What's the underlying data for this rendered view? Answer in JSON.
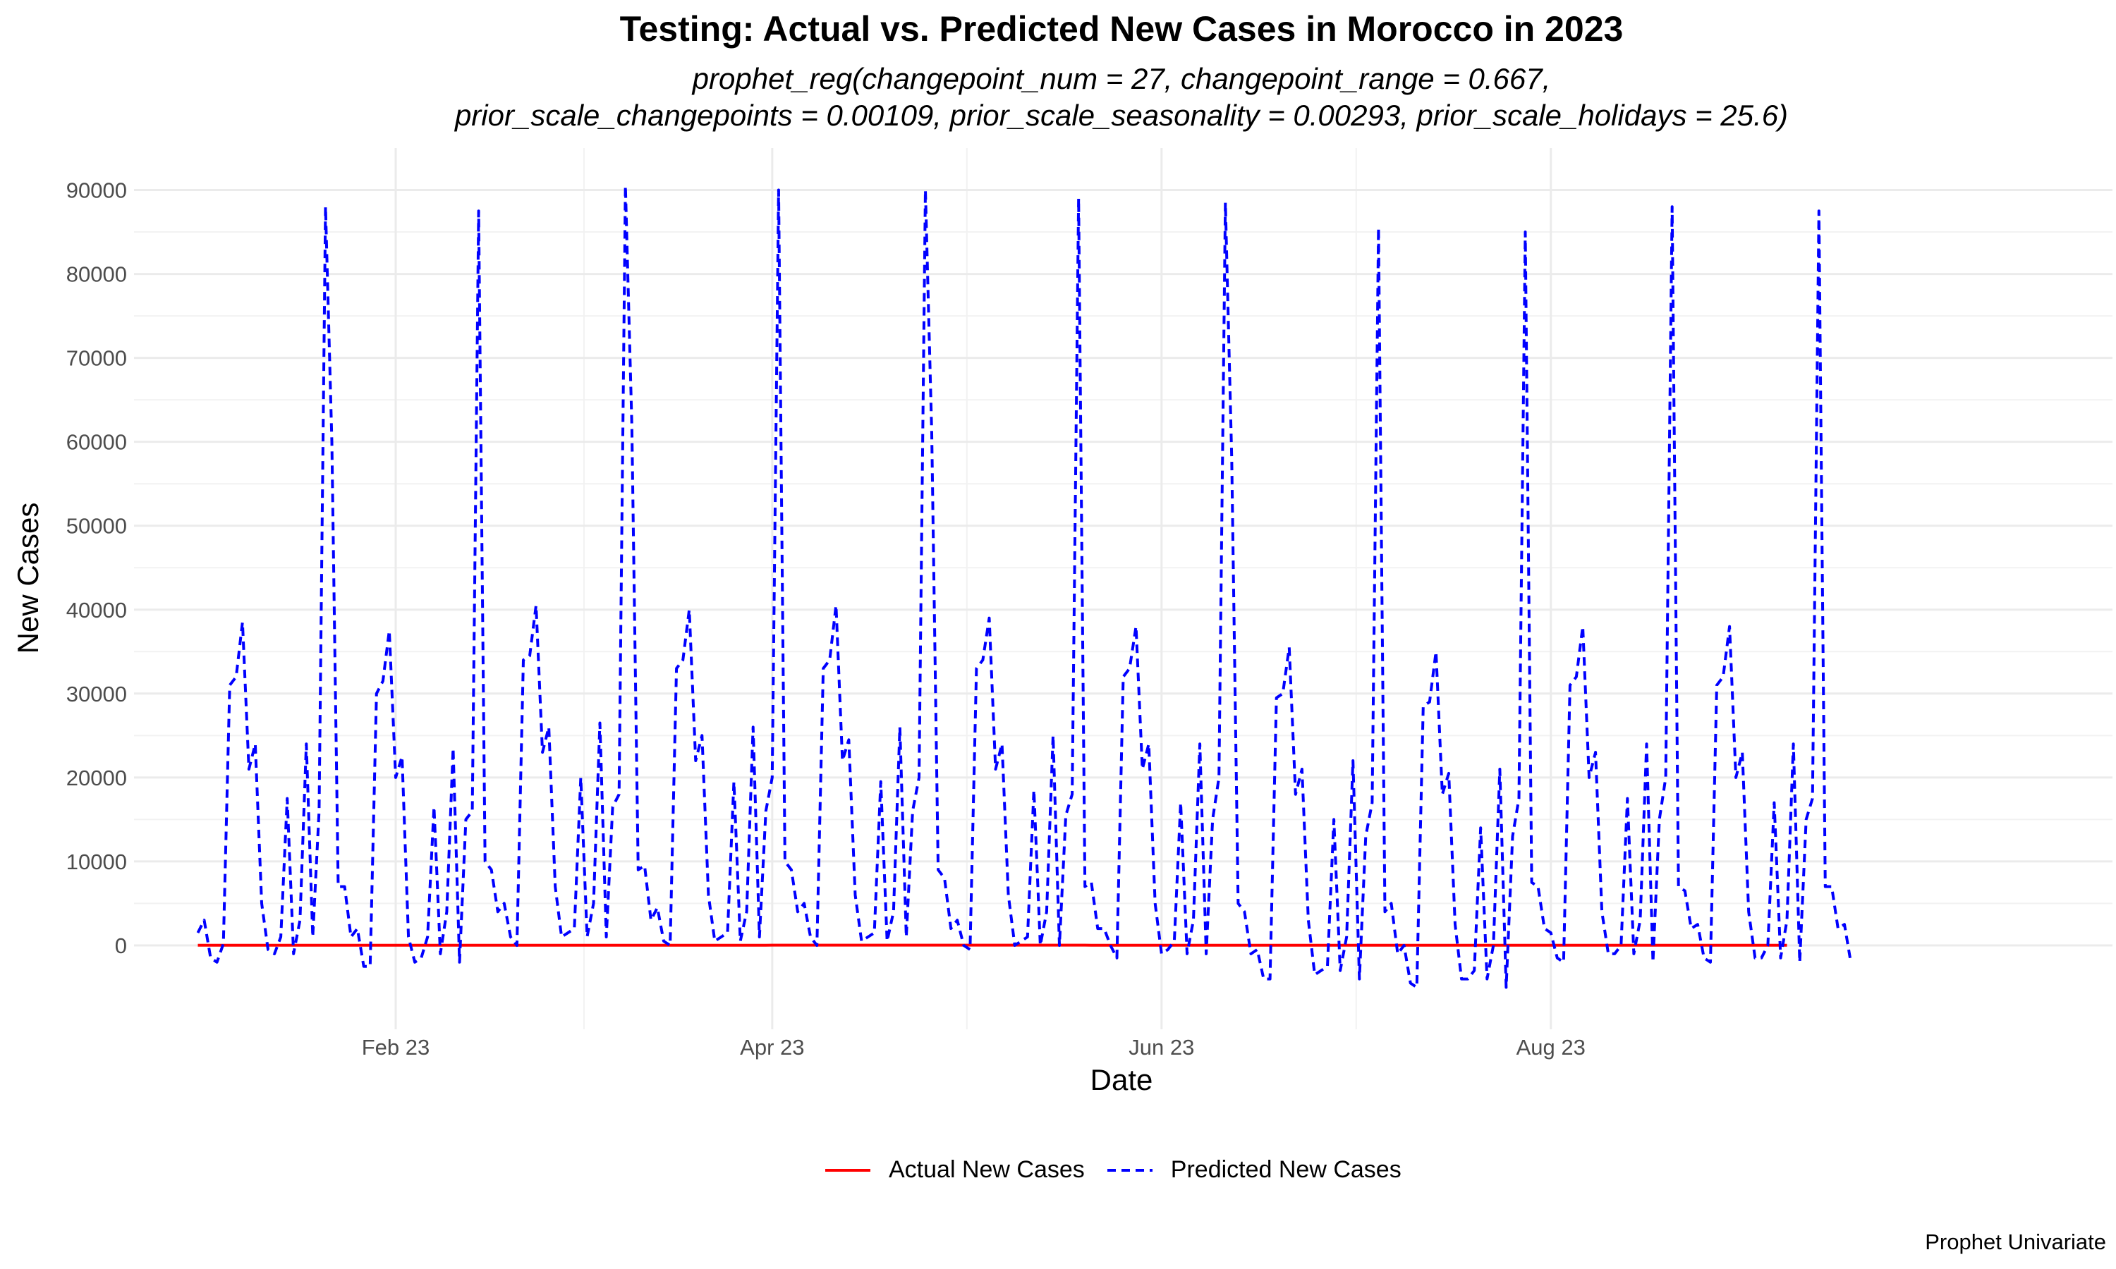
{
  "chart_data": {
    "type": "line",
    "title": "Testing: Actual vs. Predicted New Cases in Morocco in 2023",
    "subtitle_lines": [
      "prophet_reg(changepoint_num = 27, changepoint_range = 0.667,",
      "prior_scale_changepoints = 0.00109, prior_scale_seasonality = 0.00293, prior_scale_holidays = 25.6)"
    ],
    "xlabel": "Date",
    "ylabel": "New Cases",
    "caption": "Prophet Univariate",
    "x_ticks": [
      {
        "label": "Feb 23",
        "date": "2023-02-01"
      },
      {
        "label": "Apr 23",
        "date": "2023-04-01"
      },
      {
        "label": "Jun 23",
        "date": "2023-06-01"
      },
      {
        "label": "Aug 23",
        "date": "2023-08-01"
      }
    ],
    "y_ticks": [
      0,
      10000,
      20000,
      30000,
      40000,
      50000,
      60000,
      70000,
      80000,
      90000
    ],
    "xlim": [
      "2022-12-22",
      "2023-10-28"
    ],
    "ylim": [
      -10000,
      95000
    ],
    "grid": true,
    "legend_position": "bottom",
    "series": [
      {
        "name": "Actual New Cases",
        "color": "#ff0000",
        "line_style": "solid",
        "x_start": "2023-01-01",
        "x_step_days": 1,
        "values": [
          20,
          20,
          20,
          20,
          20,
          20,
          20,
          20,
          20,
          20,
          20,
          20,
          20,
          20,
          20,
          20,
          20,
          20,
          20,
          20,
          20,
          20,
          20,
          20,
          20,
          20,
          20,
          20,
          20,
          20,
          20,
          20,
          20,
          20,
          20,
          20,
          20,
          20,
          20,
          20,
          20,
          20,
          20,
          20,
          20,
          20,
          20,
          20,
          20,
          20,
          20,
          20,
          20,
          20,
          20,
          20,
          20,
          20,
          20,
          20,
          20,
          20,
          20,
          20,
          20,
          20,
          20,
          20,
          20,
          20,
          20,
          20,
          20,
          20,
          20,
          20,
          20,
          20,
          20,
          20,
          20,
          20,
          20,
          20,
          20,
          20,
          20,
          20,
          20,
          20,
          30,
          30,
          30,
          30,
          30,
          30,
          30,
          30,
          30,
          30,
          30,
          30,
          30,
          30,
          30,
          30,
          30,
          30,
          30,
          30,
          30,
          30,
          30,
          30,
          30,
          30,
          30,
          30,
          30,
          30,
          30,
          30,
          30,
          30,
          30,
          30,
          30,
          30,
          30,
          30,
          30,
          30,
          30,
          30,
          30,
          30,
          30,
          30,
          30,
          30,
          20,
          20,
          20,
          20,
          20,
          20,
          20,
          20,
          20,
          20,
          20,
          20,
          20,
          20,
          20,
          20,
          20,
          20,
          20,
          20,
          20,
          20,
          20,
          20,
          20,
          20,
          20,
          20,
          20,
          20,
          20,
          20,
          20,
          20,
          20,
          20,
          20,
          20,
          20,
          20,
          20,
          20,
          20,
          20,
          20,
          20,
          20,
          20,
          20,
          20,
          20,
          20,
          20,
          20,
          20,
          20,
          20,
          20,
          20,
          20,
          20,
          20,
          20,
          20,
          20,
          20,
          20,
          20,
          20,
          20,
          20,
          20,
          20,
          20,
          20,
          20,
          20,
          20,
          20,
          20,
          20,
          20,
          20,
          20,
          20,
          20,
          20,
          20,
          20,
          20,
          20,
          20,
          20,
          20,
          20,
          20,
          20,
          20,
          20,
          20,
          20,
          20,
          20,
          20,
          20,
          20,
          20,
          20,
          20,
          20
        ]
      },
      {
        "name": "Predicted New Cases",
        "color": "#0000ff",
        "line_style": "dashed",
        "x_start": "2023-01-01",
        "x_step_days": 1,
        "values": [
          1500,
          3000,
          -1500,
          -2000,
          200,
          31000,
          32000,
          38500,
          21000,
          24000,
          5000,
          -500,
          -1000,
          1000,
          17500,
          -1000,
          3000,
          24000,
          1000,
          16000,
          88000,
          60000,
          7000,
          7000,
          1000,
          2000,
          -2500,
          -2500,
          30000,
          31500,
          37500,
          20000,
          22500,
          1000,
          -2000,
          -1500,
          1000,
          16500,
          -1000,
          4000,
          23500,
          -2000,
          15000,
          16000,
          87500,
          10000,
          9000,
          4000,
          5000,
          1000,
          0,
          34000,
          34500,
          40500,
          23000,
          26000,
          7000,
          1000,
          1500,
          2000,
          20000,
          1000,
          5000,
          26500,
          1000,
          16500,
          18000,
          90500,
          62000,
          9000,
          9500,
          3000,
          4500,
          500,
          0,
          33000,
          34000,
          40000,
          22000,
          25000,
          6000,
          500,
          1000,
          1500,
          19500,
          500,
          4000,
          26000,
          1000,
          16000,
          20000,
          90000,
          10000,
          9000,
          4000,
          5000,
          1000,
          0,
          33000,
          34000,
          40500,
          22000,
          24500,
          6000,
          500,
          1000,
          1500,
          19500,
          500,
          4000,
          26000,
          1000,
          16000,
          20000,
          90000,
          61000,
          9000,
          8000,
          2000,
          3000,
          0,
          -500,
          33000,
          34000,
          39000,
          21000,
          24000,
          6000,
          0,
          500,
          1000,
          18500,
          0,
          4000,
          25000,
          0,
          15500,
          18000,
          89000,
          7000,
          7500,
          2000,
          2000,
          0,
          -1500,
          32000,
          33000,
          38000,
          21000,
          24000,
          5000,
          -1000,
          -500,
          500,
          17000,
          -1000,
          3000,
          24000,
          -1000,
          15000,
          20000,
          88500,
          58000,
          5000,
          4000,
          -1000,
          -500,
          -4000,
          -4000,
          29500,
          30000,
          35500,
          18000,
          21000,
          3000,
          -3500,
          -3000,
          -2500,
          15000,
          -3000,
          1000,
          22000,
          -4000,
          13000,
          17000,
          85500,
          4000,
          5000,
          -1000,
          0,
          -4500,
          -5000,
          28500,
          29000,
          35000,
          18000,
          20500,
          2500,
          -4000,
          -4000,
          -3000,
          14000,
          -4000,
          0,
          21000,
          -5000,
          13000,
          17500,
          85000,
          7500,
          7000,
          2000,
          1500,
          -1500,
          -2000,
          31000,
          32000,
          38000,
          20000,
          23000,
          4000,
          -1000,
          -1000,
          0,
          17500,
          -1000,
          3000,
          24000,
          -2000,
          15000,
          20000,
          88000,
          7000,
          6500,
          2000,
          2500,
          -1500,
          -2000,
          31000,
          32000,
          38000,
          20000,
          23000,
          4000,
          -1500,
          -1500,
          0,
          17000,
          -1500,
          3000,
          24000,
          -2000,
          15000,
          17500,
          87500,
          7000,
          7000,
          2000,
          2500,
          -2000
        ]
      }
    ]
  }
}
